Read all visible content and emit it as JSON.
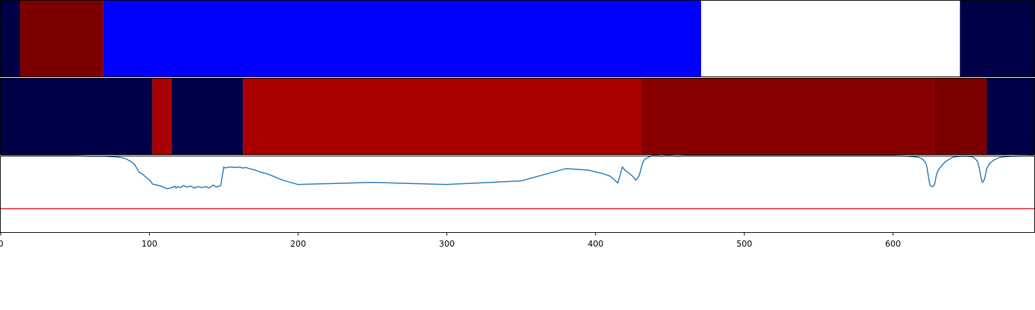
{
  "chart_data": [
    {
      "type": "heatmap",
      "segments": [
        {
          "start": 0,
          "end": 13,
          "color": "#000048"
        },
        {
          "start": 13,
          "end": 69,
          "color": "#7d0000"
        },
        {
          "start": 69,
          "end": 471,
          "color": "#0000ff"
        },
        {
          "start": 471,
          "end": 645,
          "color": "#ffffff"
        },
        {
          "start": 645,
          "end": 695,
          "color": "#000048"
        }
      ]
    },
    {
      "type": "heatmap",
      "segments": [
        {
          "start": 0,
          "end": 102,
          "color": "#000048"
        },
        {
          "start": 102,
          "end": 115,
          "color": "#a80000"
        },
        {
          "start": 115,
          "end": 163,
          "color": "#000048"
        },
        {
          "start": 163,
          "end": 431,
          "color": "#ab0000"
        },
        {
          "start": 431,
          "end": 627,
          "color": "#870000"
        },
        {
          "start": 627,
          "end": 663,
          "color": "#7d0000"
        },
        {
          "start": 663,
          "end": 695,
          "color": "#000048"
        }
      ]
    },
    {
      "type": "line",
      "xlim": [
        0,
        695
      ],
      "ylim": [
        0,
        1.5
      ],
      "xticks": [
        0,
        100,
        200,
        300,
        400,
        500,
        600
      ],
      "threshold": {
        "value": 0.47,
        "color": "#e31a1c"
      },
      "series": [
        {
          "color": "#1f77b4",
          "x": [
            0,
            50,
            60,
            70,
            75,
            80,
            83,
            85,
            86,
            88,
            90,
            93,
            95,
            97,
            100,
            102,
            105,
            108,
            110,
            112,
            114,
            116,
            117,
            118,
            119,
            121,
            123,
            125,
            128,
            130,
            133,
            135,
            138,
            140,
            143,
            145,
            148,
            150,
            151,
            152,
            155,
            158,
            160,
            163,
            165,
            167,
            170,
            175,
            180,
            185,
            190,
            200,
            250,
            300,
            350,
            380,
            395,
            405,
            410,
            415,
            418,
            420,
            422,
            425,
            427,
            429,
            430,
            431,
            432,
            433,
            435,
            437,
            438,
            440,
            441,
            442,
            444,
            447,
            450,
            455,
            460,
            470,
            480,
            490,
            500,
            550,
            600,
            610,
            617,
            620,
            622,
            623,
            624,
            625,
            626,
            627,
            628,
            629,
            630,
            632,
            635,
            640,
            645,
            650,
            653,
            655,
            657,
            658,
            659,
            660,
            661,
            662,
            663,
            665,
            668,
            672,
            680,
            695
          ],
          "y": [
            1.5,
            1.5,
            1.49,
            1.49,
            1.48,
            1.47,
            1.45,
            1.43,
            1.41,
            1.38,
            1.33,
            1.18,
            1.15,
            1.1,
            1.03,
            0.95,
            0.93,
            0.91,
            0.88,
            0.86,
            0.87,
            0.89,
            0.91,
            0.87,
            0.9,
            0.88,
            0.92,
            0.89,
            0.91,
            0.87,
            0.9,
            0.88,
            0.9,
            0.87,
            0.93,
            0.89,
            0.92,
            1.28,
            1.26,
            1.27,
            1.28,
            1.27,
            1.28,
            1.26,
            1.27,
            1.25,
            1.23,
            1.18,
            1.14,
            1.08,
            1.02,
            0.94,
            0.98,
            0.94,
            1.01,
            1.25,
            1.22,
            1.15,
            1.1,
            0.97,
            1.28,
            1.21,
            1.17,
            1.1,
            1.02,
            1.1,
            1.18,
            1.3,
            1.38,
            1.43,
            1.46,
            1.49,
            1.5,
            1.5,
            1.5,
            1.5,
            1.49,
            1.5,
            1.5,
            1.49,
            1.5,
            1.5,
            1.5,
            1.5,
            1.5,
            1.5,
            1.5,
            1.49,
            1.47,
            1.43,
            1.36,
            1.25,
            1.05,
            0.92,
            0.9,
            0.9,
            0.95,
            1.1,
            1.2,
            1.28,
            1.38,
            1.47,
            1.49,
            1.49,
            1.48,
            1.45,
            1.38,
            1.25,
            1.1,
            0.98,
            1.01,
            1.1,
            1.25,
            1.35,
            1.42,
            1.47,
            1.49,
            1.5
          ],
          "note": "",
          "name": ""
        }
      ]
    }
  ]
}
